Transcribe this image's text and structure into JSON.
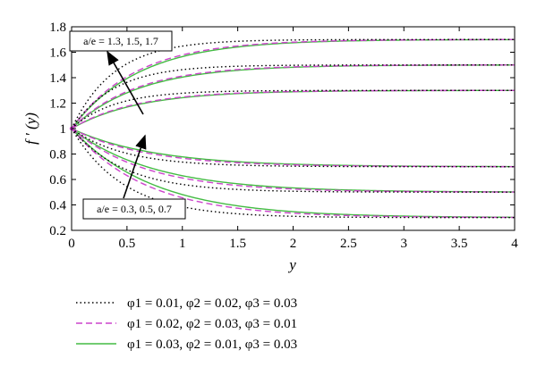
{
  "chart_data": {
    "type": "line",
    "xlabel": "y",
    "ylabel": "f ′ (y)",
    "xlim": [
      0,
      4
    ],
    "ylim": [
      0.2,
      1.8
    ],
    "xticks": [
      "0",
      "0.5",
      "1",
      "1.5",
      "2",
      "2.5",
      "3",
      "3.5",
      "4"
    ],
    "yticks": [
      "0.2",
      "0.4",
      "0.6",
      "0.8",
      "1",
      "1.2",
      "1.4",
      "1.6",
      "1.8"
    ],
    "grid": false,
    "annotations": [
      {
        "text": "a/e = 1.3, 1.5, 1.7"
      },
      {
        "text": "a/e = 0.3, 0.5, 0.7"
      }
    ],
    "legend": {
      "placement": "below",
      "entries": [
        {
          "text": "φ1 = 0.01, φ2 = 0.02, φ3 = 0.03",
          "style": "dotted",
          "color": "#000000"
        },
        {
          "text": "φ1 = 0.02, φ2 = 0.03, φ3 = 0.01",
          "style": "dashed",
          "color": "#cc44cc"
        },
        {
          "text": "φ1 = 0.03, φ2 = 0.01, φ3 = 0.03",
          "style": "solid",
          "color": "#44bb44"
        }
      ]
    },
    "curve_model": "f'(y) = r + (1 - r) * exp(-k * y)",
    "series": [
      {
        "style": "dotted",
        "color": "#000000",
        "curves": [
          {
            "r": 1.3,
            "k": 2.6
          },
          {
            "r": 1.5,
            "k": 2.6
          },
          {
            "r": 1.7,
            "k": 2.6
          },
          {
            "r": 0.7,
            "k": 2.1
          },
          {
            "r": 0.5,
            "k": 2.1
          },
          {
            "r": 0.3,
            "k": 2.1
          }
        ]
      },
      {
        "style": "dashed",
        "color": "#cc44cc",
        "curves": [
          {
            "r": 1.3,
            "k": 1.75
          },
          {
            "r": 1.5,
            "k": 1.75
          },
          {
            "r": 1.7,
            "k": 1.75
          },
          {
            "r": 0.7,
            "k": 1.5
          },
          {
            "r": 0.5,
            "k": 1.5
          },
          {
            "r": 0.3,
            "k": 1.5
          }
        ]
      },
      {
        "style": "solid",
        "color": "#44bb44",
        "curves": [
          {
            "r": 1.3,
            "k": 1.65
          },
          {
            "r": 1.5,
            "k": 1.65
          },
          {
            "r": 1.7,
            "k": 1.65
          },
          {
            "r": 0.7,
            "k": 1.35
          },
          {
            "r": 0.5,
            "k": 1.35
          },
          {
            "r": 0.3,
            "k": 1.35
          }
        ]
      }
    ]
  }
}
